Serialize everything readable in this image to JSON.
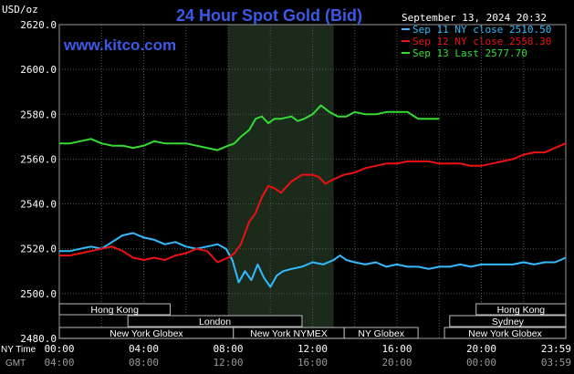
{
  "chart_data": {
    "type": "line",
    "title": "24 Hour Spot Gold (Bid)",
    "site": "www.kitco.com",
    "timestamp": "September 13, 2024 20:32",
    "ylabel": "USD/oz",
    "ylim": [
      2480,
      2620
    ],
    "y_ticks": [
      "2620.0",
      "2600.0",
      "2580.0",
      "2560.0",
      "2540.0",
      "2520.0",
      "2500.0",
      "2480.0"
    ],
    "y_tick_values": [
      2620,
      2600,
      2580,
      2560,
      2540,
      2520,
      2500,
      2480
    ],
    "x_tick_hours": [
      0,
      4,
      8,
      12,
      16,
      20,
      24
    ],
    "x_ticks_ny": [
      "00:00",
      "04:00",
      "08:00",
      "12:00",
      "16:00",
      "20:00",
      "23:59"
    ],
    "x_ticks_gmt": [
      "04:00",
      "08:00",
      "12:00",
      "16:00",
      "20:00",
      "00:00",
      "03:59"
    ],
    "x_row_labels": {
      "ny": "NY Time",
      "gmt": "GMT"
    },
    "grid": true,
    "shaded_session_hours": [
      8,
      13
    ],
    "legend": [
      {
        "label": "Sep 11 NY close 2510.50",
        "color": "#33bbff"
      },
      {
        "label": "Sep 12 NY close 2558.30",
        "color": "#ee1111"
      },
      {
        "label": "Sep 13 Last 2577.70",
        "color": "#33dd33"
      }
    ],
    "sessions": [
      {
        "label": "Hong Kong",
        "row": 0,
        "start": 0,
        "end": 5.25
      },
      {
        "label": "Hong Kong",
        "row": 0,
        "start": 19.75,
        "end": 24
      },
      {
        "label": "London",
        "row": 1,
        "start": 3.25,
        "end": 11.5
      },
      {
        "label": "Sydney",
        "row": 1,
        "start": 18.5,
        "end": 24
      },
      {
        "label": "New York Globex",
        "row": 2,
        "start": 0,
        "end": 8.25
      },
      {
        "label": "New York NYMEX",
        "row": 2,
        "start": 8.25,
        "end": 13.5
      },
      {
        "label": "NY Globex",
        "row": 2,
        "start": 13.5,
        "end": 17
      },
      {
        "label": "New York Globex",
        "row": 2,
        "start": 18.25,
        "end": 24
      }
    ],
    "series": [
      {
        "name": "Sep 11",
        "color": "#33bbff",
        "x": [
          0,
          0.5,
          1,
          1.5,
          2,
          2.5,
          3,
          3.5,
          4,
          4.5,
          5,
          5.5,
          6,
          6.5,
          7,
          7.5,
          7.9,
          8.2,
          8.5,
          8.8,
          9.1,
          9.4,
          9.7,
          10,
          10.3,
          10.6,
          11,
          11.5,
          12,
          12.5,
          13,
          13.3,
          13.6,
          14,
          14.5,
          15,
          15.5,
          16,
          16.5,
          17,
          17.5,
          18,
          18.5,
          19,
          19.5,
          20,
          20.5,
          21,
          21.5,
          22,
          22.5,
          23,
          23.5,
          24
        ],
        "y": [
          2519,
          2519,
          2520,
          2521,
          2520,
          2523,
          2526,
          2527,
          2525,
          2524,
          2522,
          2523,
          2521,
          2520,
          2521,
          2522,
          2520,
          2515,
          2505,
          2510,
          2506,
          2513,
          2507,
          2503,
          2508,
          2510,
          2511,
          2512,
          2514,
          2513,
          2515,
          2517,
          2515,
          2514,
          2513,
          2514,
          2512,
          2513,
          2512,
          2512,
          2511,
          2512,
          2512,
          2513,
          2512,
          2513,
          2513,
          2513,
          2513,
          2514,
          2513,
          2514,
          2514,
          2516
        ]
      },
      {
        "name": "Sep 12",
        "color": "#ee1111",
        "x": [
          0,
          0.5,
          1,
          1.5,
          2,
          2.5,
          3,
          3.5,
          4,
          4.5,
          5,
          5.5,
          6,
          6.5,
          7,
          7.5,
          8,
          8.3,
          8.6,
          9,
          9.3,
          9.6,
          9.9,
          10.2,
          10.5,
          11,
          11.5,
          12,
          12.3,
          12.6,
          13,
          13.5,
          14,
          14.5,
          15,
          15.5,
          16,
          16.5,
          17,
          17.5,
          18,
          18.5,
          19,
          19.5,
          20,
          20.5,
          21,
          21.5,
          22,
          22.5,
          23,
          23.5,
          24
        ],
        "y": [
          2517,
          2517,
          2518,
          2519,
          2520,
          2521,
          2519,
          2516,
          2515,
          2516,
          2515,
          2517,
          2518,
          2520,
          2519,
          2514,
          2516,
          2518,
          2522,
          2532,
          2536,
          2543,
          2548,
          2547,
          2545,
          2550,
          2553,
          2553,
          2552,
          2549,
          2551,
          2553,
          2554,
          2556,
          2557,
          2558,
          2558,
          2559,
          2559,
          2559,
          2558,
          2558,
          2558,
          2557,
          2557,
          2558,
          2559,
          2560,
          2562,
          2563,
          2563,
          2565,
          2567
        ]
      },
      {
        "name": "Sep 13",
        "color": "#33dd33",
        "x": [
          0,
          0.5,
          1,
          1.5,
          2,
          2.5,
          3,
          3.5,
          4,
          4.5,
          5,
          5.5,
          6,
          6.5,
          7,
          7.5,
          8,
          8.3,
          8.6,
          9,
          9.3,
          9.6,
          9.9,
          10.2,
          10.5,
          11,
          11.3,
          11.6,
          12,
          12.4,
          12.8,
          13.2,
          13.6,
          14,
          14.5,
          15,
          15.5,
          16,
          16.5,
          17,
          17.5,
          18
        ],
        "y": [
          2567,
          2567,
          2568,
          2569,
          2567,
          2566,
          2566,
          2565,
          2566,
          2568,
          2567,
          2567,
          2567,
          2566,
          2565,
          2564,
          2566,
          2567,
          2570,
          2573,
          2578,
          2579,
          2576,
          2578,
          2578,
          2579,
          2577,
          2578,
          2580,
          2584,
          2581,
          2579,
          2579,
          2581,
          2580,
          2580,
          2581,
          2581,
          2581,
          2578,
          2578,
          2578
        ]
      }
    ]
  }
}
